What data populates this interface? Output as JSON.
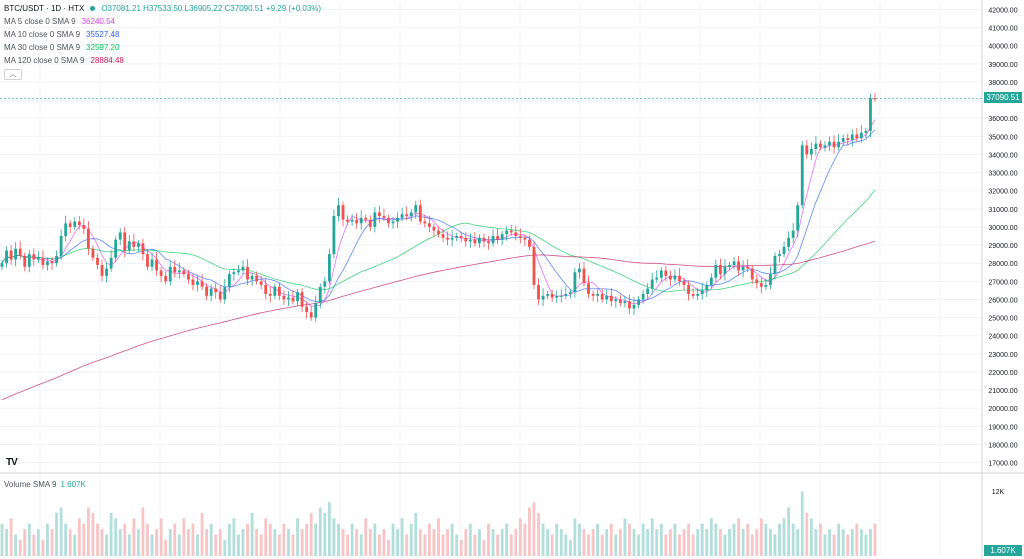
{
  "header": {
    "symbol": "BTC/USDT · 1D · HTX",
    "ohlc": "O37081.21  H37533.50  L36905.22  C37090.51  +9.29 (+0.03%)",
    "collapse_icon": "chevron-up-icon"
  },
  "ma_legend": [
    {
      "label": "MA 5 close 0 SMA 9",
      "value": "36240.54",
      "color": "#e040fb"
    },
    {
      "label": "MA 10 close 0 SMA 9",
      "value": "35527.48",
      "color": "#2962ff"
    },
    {
      "label": "MA 30 close 0 SMA 9",
      "value": "32597.20",
      "color": "#00c853"
    },
    {
      "label": "MA 120 close 0 SMA 9",
      "value": "28884.48",
      "color": "#c2185b"
    }
  ],
  "volume_legend": {
    "label": "Volume SMA 9",
    "value": "1.607K"
  },
  "price_badge": "37090.51",
  "volume_badge": "1.607K",
  "logo": "TV",
  "colors": {
    "up": "#26a69a",
    "down": "#ef5350",
    "vol_up": "#b2dfdb",
    "vol_down": "#f7c5c5"
  },
  "chart_data": {
    "type": "candlestick",
    "price_axis": {
      "ticks": [
        "42000.00",
        "41000.00",
        "40000.00",
        "39000.00",
        "38000.00",
        "37000.00",
        "36000.00",
        "35000.00",
        "34000.00",
        "33000.00",
        "32000.00",
        "31000.00",
        "30000.00",
        "29000.00",
        "28000.00",
        "27000.00",
        "26000.00",
        "25000.00",
        "24000.00",
        "23000.00",
        "22000.00",
        "21000.00",
        "20000.00",
        "19000.00",
        "18000.00",
        "17000.00"
      ],
      "range": [
        16700,
        42300
      ]
    },
    "volume_axis": {
      "ticks": [
        "12K"
      ],
      "range": [
        0,
        13000
      ]
    },
    "last_price": 37090.51,
    "closes": [
      28000,
      28700,
      28200,
      28800,
      28400,
      27800,
      28500,
      28200,
      28300,
      27900,
      28100,
      28000,
      28400,
      29500,
      30200,
      30000,
      30300,
      30100,
      29900,
      28800,
      28300,
      27900,
      27300,
      27700,
      28300,
      29300,
      29700,
      28700,
      29200,
      28900,
      29100,
      28500,
      27800,
      28200,
      27600,
      27300,
      27000,
      27800,
      27500,
      27600,
      27400,
      27100,
      26800,
      27000,
      26700,
      26200,
      26600,
      26400,
      26000,
      26700,
      27400,
      27500,
      27600,
      27800,
      27100,
      27300,
      27000,
      26800,
      26300,
      26200,
      26700,
      26200,
      26000,
      26100,
      25900,
      26400,
      25600,
      25300,
      25000,
      25800,
      26700,
      27000,
      28500,
      30600,
      31200,
      30400,
      30300,
      30400,
      30200,
      30500,
      30400,
      30000,
      30800,
      30600,
      30500,
      30200,
      30300,
      30500,
      30700,
      30600,
      30800,
      31200,
      30300,
      30200,
      30000,
      29800,
      29600,
      29400,
      29300,
      29400,
      29500,
      29400,
      29200,
      29300,
      29100,
      29400,
      29200,
      29100,
      29500,
      29300,
      29600,
      29800,
      29700,
      29500,
      29400,
      29300,
      28900,
      26800,
      26000,
      26200,
      26300,
      26100,
      26200,
      26200,
      26300,
      26400,
      27500,
      27700,
      26900,
      26300,
      26200,
      26300,
      26000,
      26200,
      25900,
      26000,
      25800,
      25900,
      25500,
      25700,
      26000,
      26300,
      26600,
      27100,
      27200,
      27600,
      27300,
      27100,
      27300,
      27000,
      26800,
      26300,
      26200,
      26300,
      26500,
      26800,
      27200,
      27900,
      27400,
      27800,
      27900,
      28100,
      27600,
      27800,
      27700,
      27100,
      26900,
      26700,
      26800,
      27400,
      28400,
      28500,
      28900,
      29400,
      29800,
      31200,
      34500,
      34000,
      34300,
      34600,
      34400,
      34500,
      34700,
      34400,
      34700,
      34900,
      34800,
      35100,
      34900,
      35200,
      35300,
      37100,
      37090.51
    ],
    "volumes": [
      6,
      5,
      7,
      4,
      3,
      5,
      6,
      4,
      5,
      3,
      6,
      5,
      8,
      9,
      6,
      5,
      4,
      7,
      6,
      9,
      8,
      6,
      5,
      4,
      8,
      7,
      5,
      6,
      4,
      7,
      5,
      9,
      6,
      4,
      5,
      7,
      3,
      5,
      6,
      4,
      7,
      5,
      6,
      4,
      8,
      5,
      6,
      4,
      5,
      3,
      6,
      7,
      4,
      5,
      6,
      8,
      5,
      4,
      7,
      6,
      5,
      4,
      6,
      5,
      4,
      7,
      5,
      6,
      8,
      6,
      9,
      8,
      10,
      7,
      6,
      5,
      4,
      6,
      5,
      4,
      7,
      5,
      6,
      4,
      5,
      3,
      6,
      5,
      7,
      4,
      6,
      8,
      5,
      4,
      6,
      5,
      7,
      4,
      5,
      6,
      4,
      3,
      5,
      6,
      4,
      5,
      3,
      6,
      5,
      4,
      5,
      6,
      4,
      5,
      7,
      6,
      9,
      10,
      8,
      6,
      5,
      4,
      6,
      5,
      4,
      3,
      7,
      6,
      5,
      4,
      5,
      6,
      4,
      5,
      6,
      4,
      5,
      7,
      6,
      5,
      4,
      6,
      5,
      7,
      5,
      6,
      4,
      5,
      6,
      4,
      5,
      6,
      4,
      5,
      6,
      5,
      7,
      6,
      5,
      4,
      5,
      6,
      7,
      5,
      6,
      4,
      5,
      7,
      6,
      5,
      4,
      6,
      7,
      9,
      6,
      5,
      12,
      8,
      7,
      5,
      6,
      4,
      5,
      4,
      6,
      5,
      4,
      5,
      6,
      5,
      4,
      5,
      6
    ]
  }
}
